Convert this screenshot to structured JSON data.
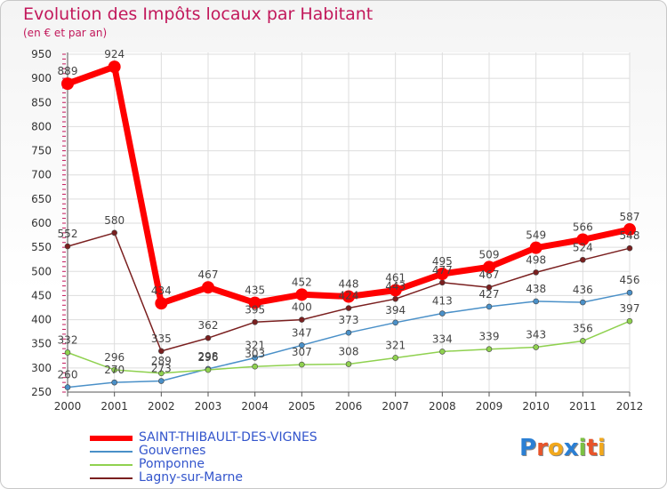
{
  "header": {
    "title": "Evolution des Impôts locaux par Habitant",
    "subtitle": "(en € et par an)"
  },
  "chart_data": {
    "type": "line",
    "title": "Evolution des Impôts locaux par Habitant",
    "subtitle": "(en € et par an)",
    "x": [
      "2000",
      "2001",
      "2002",
      "2003",
      "2004",
      "2005",
      "2006",
      "2007",
      "2008",
      "2009",
      "2010",
      "2011",
      "2012"
    ],
    "ylim": [
      250,
      950
    ],
    "yticks": [
      250,
      300,
      350,
      400,
      450,
      500,
      550,
      600,
      650,
      700,
      750,
      800,
      850,
      900,
      950
    ],
    "grid": true,
    "legend_position": "bottom-left",
    "series": [
      {
        "name": "SAINT-THIBAULT-DES-VIGNES",
        "color": "#ff0000",
        "values": [
          889,
          924,
          434,
          467,
          435,
          452,
          448,
          461,
          495,
          509,
          549,
          566,
          587
        ]
      },
      {
        "name": "Gouvernes",
        "color": "#4a90c8",
        "values": [
          260,
          270,
          273,
          298,
          321,
          347,
          373,
          394,
          413,
          427,
          438,
          436,
          456
        ]
      },
      {
        "name": "Pomponne",
        "color": "#8fd14f",
        "values": [
          332,
          296,
          289,
          296,
          303,
          307,
          308,
          321,
          334,
          339,
          343,
          356,
          397
        ]
      },
      {
        "name": "Lagny-sur-Marne",
        "color": "#7a1f1f",
        "values": [
          552,
          580,
          335,
          362,
          395,
          400,
          424,
          443,
          477,
          467,
          498,
          524,
          548
        ]
      }
    ]
  },
  "legend": {
    "items": [
      {
        "label": "SAINT-THIBAULT-DES-VIGNES",
        "color": "#ff0000",
        "text_color": "#3355cc"
      },
      {
        "label": "Gouvernes",
        "color": "#4a90c8",
        "text_color": "#3355cc"
      },
      {
        "label": "Pomponne",
        "color": "#8fd14f",
        "text_color": "#3355cc"
      },
      {
        "label": "Lagny-sur-Marne",
        "color": "#7a1f1f",
        "text_color": "#3355cc"
      }
    ]
  },
  "logo": {
    "letters": [
      "P",
      "r",
      "o",
      "x",
      "i",
      "t",
      "i"
    ],
    "colors": [
      "#2a7fd4",
      "#e8542a",
      "#f2a81c",
      "#2a7fd4",
      "#7cc142",
      "#e8542a",
      "#f2a81c"
    ]
  }
}
